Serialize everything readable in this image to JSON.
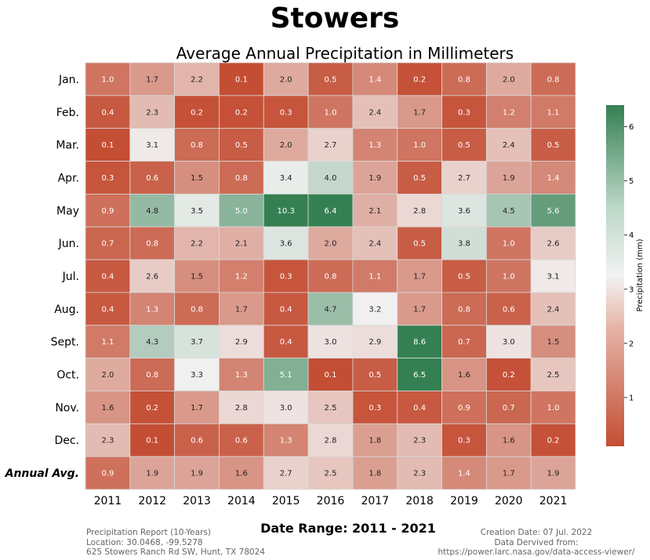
{
  "header": {
    "title": "Stowers",
    "subtitle": "Average Annual Precipitation in Millimeters"
  },
  "footer": {
    "date_range": "Date Range: 2011 - 2021",
    "left_line1": "Precipitation Report (10-Years)",
    "left_line2": "Location: 30.0468, -99.5278",
    "left_line3": "625 Stowers Ranch Rd SW, Hunt, TX 78024",
    "right_line1": "Creation Date: 07 Jul. 2022",
    "right_line2": "Data Dervived from:",
    "right_line3": "https://power.larc.nasa.gov/data-access-viewer/"
  },
  "chart_data": {
    "type": "heatmap",
    "title": "Average Annual Precipitation in Millimeters",
    "x": [
      "2011",
      "2012",
      "2013",
      "2014",
      "2015",
      "2016",
      "2017",
      "2018",
      "2019",
      "2020",
      "2021"
    ],
    "y": [
      "Jan.",
      "Feb.",
      "Mar.",
      "Apr.",
      "May",
      "Jun.",
      "Jul.",
      "Aug.",
      "Sept.",
      "Oct.",
      "Nov.",
      "Dec.",
      "Annual Avg."
    ],
    "values": [
      [
        1.0,
        1.7,
        2.2,
        0.1,
        2.0,
        0.5,
        1.4,
        0.2,
        0.8,
        2.0,
        0.8
      ],
      [
        0.4,
        2.3,
        0.2,
        0.2,
        0.3,
        1.0,
        2.4,
        1.7,
        0.3,
        1.2,
        1.1
      ],
      [
        0.1,
        3.1,
        0.8,
        0.5,
        2.0,
        2.7,
        1.3,
        1.0,
        0.5,
        2.4,
        0.5
      ],
      [
        0.3,
        0.6,
        1.5,
        0.8,
        3.4,
        4.0,
        1.9,
        0.5,
        2.7,
        1.9,
        1.4
      ],
      [
        0.9,
        4.8,
        3.5,
        5.0,
        10.3,
        6.4,
        2.1,
        2.8,
        3.6,
        4.5,
        5.6
      ],
      [
        0.7,
        0.8,
        2.2,
        2.1,
        3.6,
        2.0,
        2.4,
        0.5,
        3.8,
        1.0,
        2.6
      ],
      [
        0.4,
        2.6,
        1.5,
        1.2,
        0.3,
        0.8,
        1.1,
        1.7,
        0.5,
        1.0,
        3.1
      ],
      [
        0.4,
        1.3,
        0.8,
        1.7,
        0.4,
        4.7,
        3.2,
        1.7,
        0.8,
        0.6,
        2.4
      ],
      [
        1.1,
        4.3,
        3.7,
        2.9,
        0.4,
        3.0,
        2.9,
        8.6,
        0.7,
        3.0,
        1.5
      ],
      [
        2.0,
        0.8,
        3.3,
        1.3,
        5.1,
        0.1,
        0.5,
        6.5,
        1.6,
        0.2,
        2.5
      ],
      [
        1.6,
        0.2,
        1.7,
        2.8,
        3.0,
        2.5,
        0.3,
        0.4,
        0.9,
        0.7,
        1.0
      ],
      [
        2.3,
        0.1,
        0.6,
        0.6,
        1.3,
        2.8,
        1.8,
        2.3,
        0.3,
        1.6,
        0.2
      ],
      [
        0.9,
        1.9,
        1.9,
        1.6,
        2.7,
        2.5,
        1.8,
        2.3,
        1.4,
        1.7,
        1.9
      ]
    ],
    "colorbar": {
      "label": "Precipitation (mm)",
      "range": [
        0.1,
        6.4
      ],
      "ticks": [
        1,
        2,
        3,
        4,
        5,
        6
      ],
      "tick_labels": [
        "1",
        "2",
        "3",
        "4",
        "5",
        "6"
      ]
    },
    "colors": {
      "low": "#c44e34",
      "mid": "#f2f2f2",
      "high": "#358053"
    }
  }
}
